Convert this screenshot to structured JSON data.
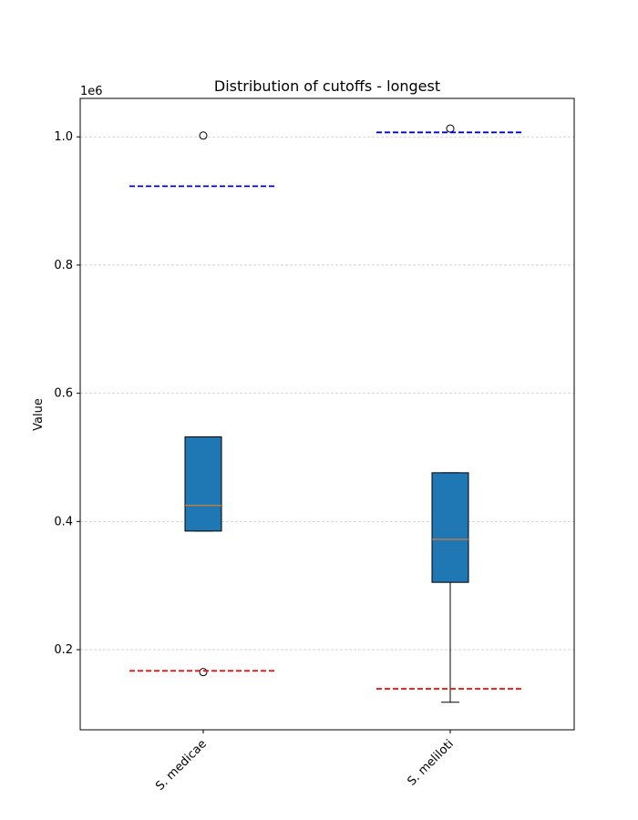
{
  "chart_data": {
    "type": "boxplot",
    "title": "Distribution of cutoffs - longest",
    "xlabel": "",
    "ylabel": "Value",
    "y_scale_label": "1e6",
    "ylim": [
      75000,
      1060000
    ],
    "yticks": [
      200000,
      400000,
      600000,
      800000,
      1000000
    ],
    "ytick_labels": [
      "0.2",
      "0.4",
      "0.6",
      "0.8",
      "1.0"
    ],
    "grid": "y-dashed",
    "categories": [
      "S. medicae",
      "S. meliloti"
    ],
    "boxes": [
      {
        "name": "S. medicae",
        "whisker_low": 385000,
        "q1": 385000,
        "median": 425000,
        "q3": 532000,
        "whisker_high": 532000,
        "outliers": [
          1002000,
          165000
        ],
        "upper_cutoff": 923000,
        "lower_cutoff": 167000
      },
      {
        "name": "S. meliloti",
        "whisker_low": 118000,
        "q1": 305000,
        "median": 372000,
        "q3": 476000,
        "whisker_high": 476000,
        "outliers": [
          1013000
        ],
        "upper_cutoff": 1007000,
        "lower_cutoff": 139000
      }
    ],
    "colors": {
      "box_fill": "#1f77b4",
      "median": "#ff7f0e",
      "upper_cutoff": "#0000cc",
      "lower_cutoff": "#ff0000",
      "grid": "#cccccc"
    }
  }
}
